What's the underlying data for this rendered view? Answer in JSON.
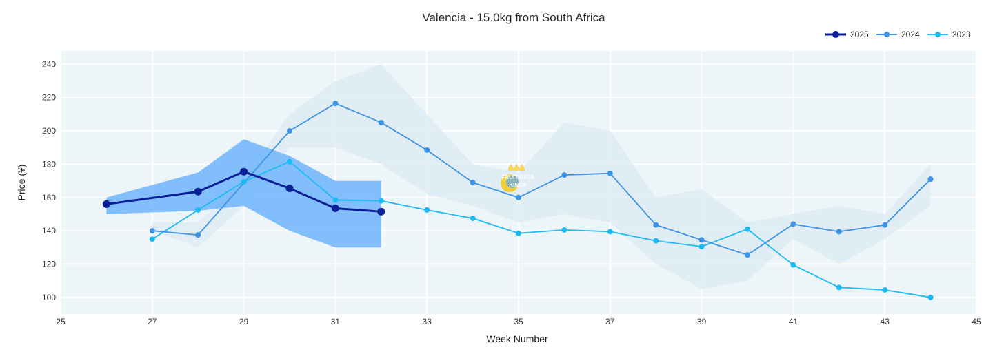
{
  "chart_data": {
    "type": "line",
    "title": "Valencia - 15.0kg from South Africa",
    "xlabel": "Week Number",
    "ylabel": "Price (¥)",
    "xlim": [
      25,
      45
    ],
    "ylim": [
      90,
      248
    ],
    "x_ticks": [
      25,
      27,
      29,
      31,
      33,
      35,
      37,
      39,
      41,
      43,
      45
    ],
    "y_ticks": [
      100,
      120,
      140,
      160,
      180,
      200,
      220,
      240
    ],
    "grid": true,
    "legend_position": "top-right",
    "series": [
      {
        "name": "2025",
        "color": "#0a1f96",
        "x": [
          26,
          28,
          29,
          30,
          31,
          32
        ],
        "values": [
          156,
          163.5,
          175.5,
          165.5,
          153.5,
          151.5
        ],
        "band": {
          "color": "#6fb4fb",
          "x": [
            26,
            28,
            29,
            30,
            31,
            32
          ],
          "low": [
            150,
            152,
            155,
            140,
            130,
            130
          ],
          "high": [
            160,
            175,
            195,
            185,
            170,
            170
          ]
        }
      },
      {
        "name": "2024",
        "color": "#3d93e6",
        "x": [
          27,
          28,
          30,
          31,
          32,
          33,
          34,
          35,
          36,
          37,
          38,
          39,
          40,
          41,
          42,
          43,
          44
        ],
        "values": [
          140,
          137.5,
          200,
          216.5,
          205,
          188.5,
          169,
          160,
          173.5,
          174.5,
          143.5,
          134.5,
          125.5,
          144,
          139.5,
          143.5,
          171
        ],
        "band": {
          "color": "#dbe9f2",
          "x": [
            27,
            28,
            29,
            30,
            31,
            32,
            33,
            34,
            35,
            36,
            37,
            38,
            39,
            40,
            41,
            42,
            43,
            44
          ],
          "low": [
            140,
            130,
            155,
            190,
            190,
            180,
            162,
            155,
            145,
            150,
            145,
            120,
            105,
            110,
            135,
            120,
            135,
            155
          ],
          "high": [
            145,
            145,
            170,
            210,
            230,
            240,
            210,
            180,
            175,
            205,
            200,
            160,
            165,
            145,
            150,
            155,
            150,
            180
          ]
        }
      },
      {
        "name": "2023",
        "color": "#1bbcf4",
        "x": [
          27,
          28,
          29,
          30,
          31,
          32,
          33,
          34,
          35,
          36,
          37,
          38,
          39,
          40,
          41,
          42,
          43,
          44
        ],
        "values": [
          135,
          152.5,
          169.5,
          181.5,
          158.5,
          158,
          152.5,
          147.5,
          138.5,
          140.5,
          139.5,
          134,
          130.5,
          141,
          119.5,
          106,
          104.5,
          100
        ]
      }
    ],
    "watermark": {
      "lines": [
        "FRUIT DATA",
        "KINGS"
      ]
    }
  }
}
